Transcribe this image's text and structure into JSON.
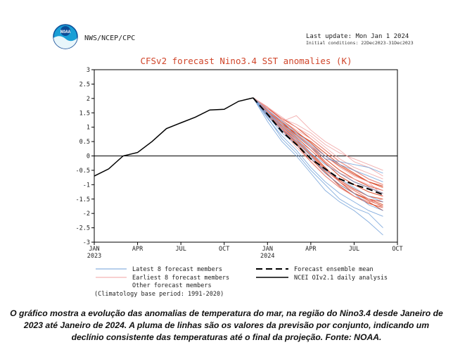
{
  "header": {
    "agency": "NWS/NCEP/CPC",
    "logo_text": "NOAA",
    "last_update": "Last update: Mon Jan 1 2024",
    "initial_conditions": "Initial conditions: 22Dec2023-31Dec2023"
  },
  "chart_data": {
    "type": "line",
    "title": "CFSv2 forecast Nino3.4 SST anomalies (K)",
    "xlabel": "",
    "ylabel": "",
    "x_ticks": [
      "JAN 2023",
      "APR",
      "JUL",
      "OCT",
      "JAN 2024",
      "APR",
      "JUL",
      "OCT"
    ],
    "y_ticks": [
      "-3",
      "-2.5",
      "-2",
      "-1.5",
      "-1",
      "-0.5",
      "0",
      "0.5",
      "1",
      "1.5",
      "2",
      "2.5",
      "3"
    ],
    "ylim": [
      -3,
      3
    ],
    "xlim": [
      0,
      21
    ],
    "zero_line": true,
    "legend_position": "bottom",
    "observed": {
      "name": "NCEI OIv2.1 daily analysis",
      "color": "#000000",
      "x": [
        0,
        1,
        2,
        3,
        4,
        5,
        6,
        7,
        8,
        9,
        10,
        11
      ],
      "y": [
        -0.7,
        -0.45,
        0.0,
        0.12,
        0.5,
        0.95,
        1.15,
        1.35,
        1.6,
        1.62,
        1.9,
        2.02
      ]
    },
    "ensemble_mean": {
      "name": "Forecast ensemble mean",
      "color": "#000000",
      "x": [
        11,
        12,
        13,
        14,
        15,
        16,
        17,
        18,
        19,
        20
      ],
      "y": [
        2.02,
        1.45,
        0.85,
        0.4,
        -0.1,
        -0.45,
        -0.8,
        -1.0,
        -1.15,
        -1.35
      ]
    },
    "member_groups": [
      {
        "name": "Latest 8 forecast members",
        "color": "#6f9fd8",
        "x": [
          11,
          12,
          13,
          14,
          15,
          16,
          17,
          18,
          19,
          20
        ],
        "members": [
          [
            2.02,
            1.2,
            0.5,
            0.0,
            -0.6,
            -1.2,
            -1.6,
            -1.9,
            -2.3,
            -2.75
          ],
          [
            2.02,
            1.3,
            0.7,
            0.2,
            -0.4,
            -0.9,
            -1.3,
            -1.6,
            -1.9,
            -2.1
          ],
          [
            2.02,
            1.4,
            0.8,
            0.4,
            -0.1,
            -0.5,
            -0.8,
            -1.1,
            -1.4,
            -1.6
          ],
          [
            2.02,
            1.5,
            1.0,
            0.6,
            0.1,
            -0.3,
            -0.6,
            -0.9,
            -1.1,
            -1.3
          ],
          [
            2.02,
            1.6,
            1.2,
            0.8,
            0.4,
            0.0,
            -0.3,
            -0.5,
            -0.7,
            -0.9
          ],
          [
            2.02,
            1.5,
            1.1,
            0.7,
            0.3,
            -0.1,
            -0.2,
            -0.3,
            -0.4,
            -0.6
          ],
          [
            2.02,
            1.35,
            0.6,
            0.1,
            -0.5,
            -1.0,
            -1.5,
            -1.8,
            -2.0,
            -2.5
          ],
          [
            2.02,
            1.45,
            0.9,
            0.5,
            0.0,
            -0.6,
            -1.0,
            -1.3,
            -1.7,
            -1.9
          ]
        ]
      },
      {
        "name": "Earliest 8 forecast members",
        "color": "#f0a0a0",
        "x": [
          11,
          12,
          13,
          14,
          15,
          16,
          17,
          18,
          19,
          20
        ],
        "members": [
          [
            2.02,
            1.7,
            1.3,
            1.1,
            0.8,
            0.4,
            0.1,
            -0.1,
            -0.3,
            -0.5
          ],
          [
            2.02,
            1.6,
            1.2,
            1.4,
            0.9,
            0.5,
            0.2,
            -0.2,
            -0.4,
            -0.7
          ],
          [
            2.02,
            1.55,
            1.0,
            0.5,
            0.0,
            -0.5,
            -0.9,
            -1.2,
            -1.5,
            -1.8
          ],
          [
            2.02,
            1.65,
            1.25,
            0.9,
            0.6,
            0.2,
            -0.2,
            -0.5,
            -0.8,
            -1.0
          ],
          [
            2.02,
            1.5,
            0.95,
            0.55,
            0.2,
            -0.2,
            -0.6,
            -0.8,
            -1.0,
            -1.2
          ],
          [
            2.02,
            1.6,
            1.1,
            0.7,
            0.35,
            0.0,
            -0.4,
            -0.7,
            -0.9,
            -1.4
          ],
          [
            2.02,
            1.45,
            0.9,
            0.3,
            -0.2,
            -0.7,
            -1.1,
            -1.4,
            -1.6,
            -1.5
          ],
          [
            2.02,
            1.7,
            1.35,
            1.0,
            0.7,
            0.3,
            -0.1,
            -0.4,
            -0.6,
            -0.8
          ]
        ]
      },
      {
        "name": "Other forecast members",
        "color": "#d84a2a",
        "x": [
          11,
          12,
          13,
          14,
          15,
          16,
          17,
          18,
          19,
          20
        ],
        "members": [
          [
            2.02,
            1.6,
            1.2,
            0.7,
            0.3,
            -0.2,
            -0.6,
            -0.9,
            -1.1,
            -1.3
          ],
          [
            2.02,
            1.5,
            1.0,
            0.5,
            0.0,
            -0.5,
            -0.9,
            -1.2,
            -1.5,
            -1.7
          ],
          [
            2.02,
            1.55,
            1.1,
            0.8,
            0.5,
            0.1,
            -0.3,
            -0.6,
            -0.9,
            -1.1
          ],
          [
            2.02,
            1.4,
            0.9,
            0.4,
            -0.2,
            -0.7,
            -1.1,
            -1.4,
            -1.6,
            -1.9
          ],
          [
            2.02,
            1.65,
            1.3,
            1.0,
            0.6,
            0.2,
            -0.2,
            -0.5,
            -0.8,
            -1.0
          ],
          [
            2.02,
            1.5,
            1.05,
            0.6,
            0.1,
            -0.4,
            -0.9,
            -1.3,
            -1.5,
            -1.6
          ],
          [
            2.02,
            1.45,
            0.95,
            0.45,
            -0.1,
            -0.6,
            -1.0,
            -1.3,
            -1.55,
            -1.75
          ],
          [
            2.02,
            1.6,
            1.15,
            0.75,
            0.35,
            -0.1,
            -0.5,
            -0.8,
            -1.05,
            -1.2
          ],
          [
            2.02,
            1.55,
            1.0,
            0.55,
            0.05,
            -0.45,
            -0.85,
            -1.15,
            -1.4,
            -1.5
          ],
          [
            2.02,
            1.7,
            1.25,
            0.85,
            0.45,
            0.0,
            -0.35,
            -0.65,
            -0.9,
            -1.05
          ],
          [
            2.02,
            1.5,
            0.95,
            0.5,
            0.0,
            -0.55,
            -1.05,
            -1.4,
            -1.65,
            -1.8
          ],
          [
            2.02,
            1.6,
            1.1,
            0.65,
            0.2,
            -0.25,
            -0.7,
            -1.0,
            -1.25,
            -1.4
          ]
        ]
      }
    ],
    "legend": {
      "left": [
        "Latest 8 forecast members",
        "Earliest 8 forecast members",
        "Other forecast members",
        "(Climatology base period: 1991-2020)"
      ],
      "right": [
        "Forecast ensemble mean",
        "NCEI OIv2.1 daily analysis"
      ]
    }
  },
  "caption": "O gráfico mostra a evolução das anomalias de temperatura do mar, na região do Nino3.4 desde Janeiro de 2023 até Janeiro de 2024. A pluma de linhas são os valores da previsão por conjunto, indicando um declínio consistente das temperaturas até o final da projeção. Fonte: NOAA."
}
